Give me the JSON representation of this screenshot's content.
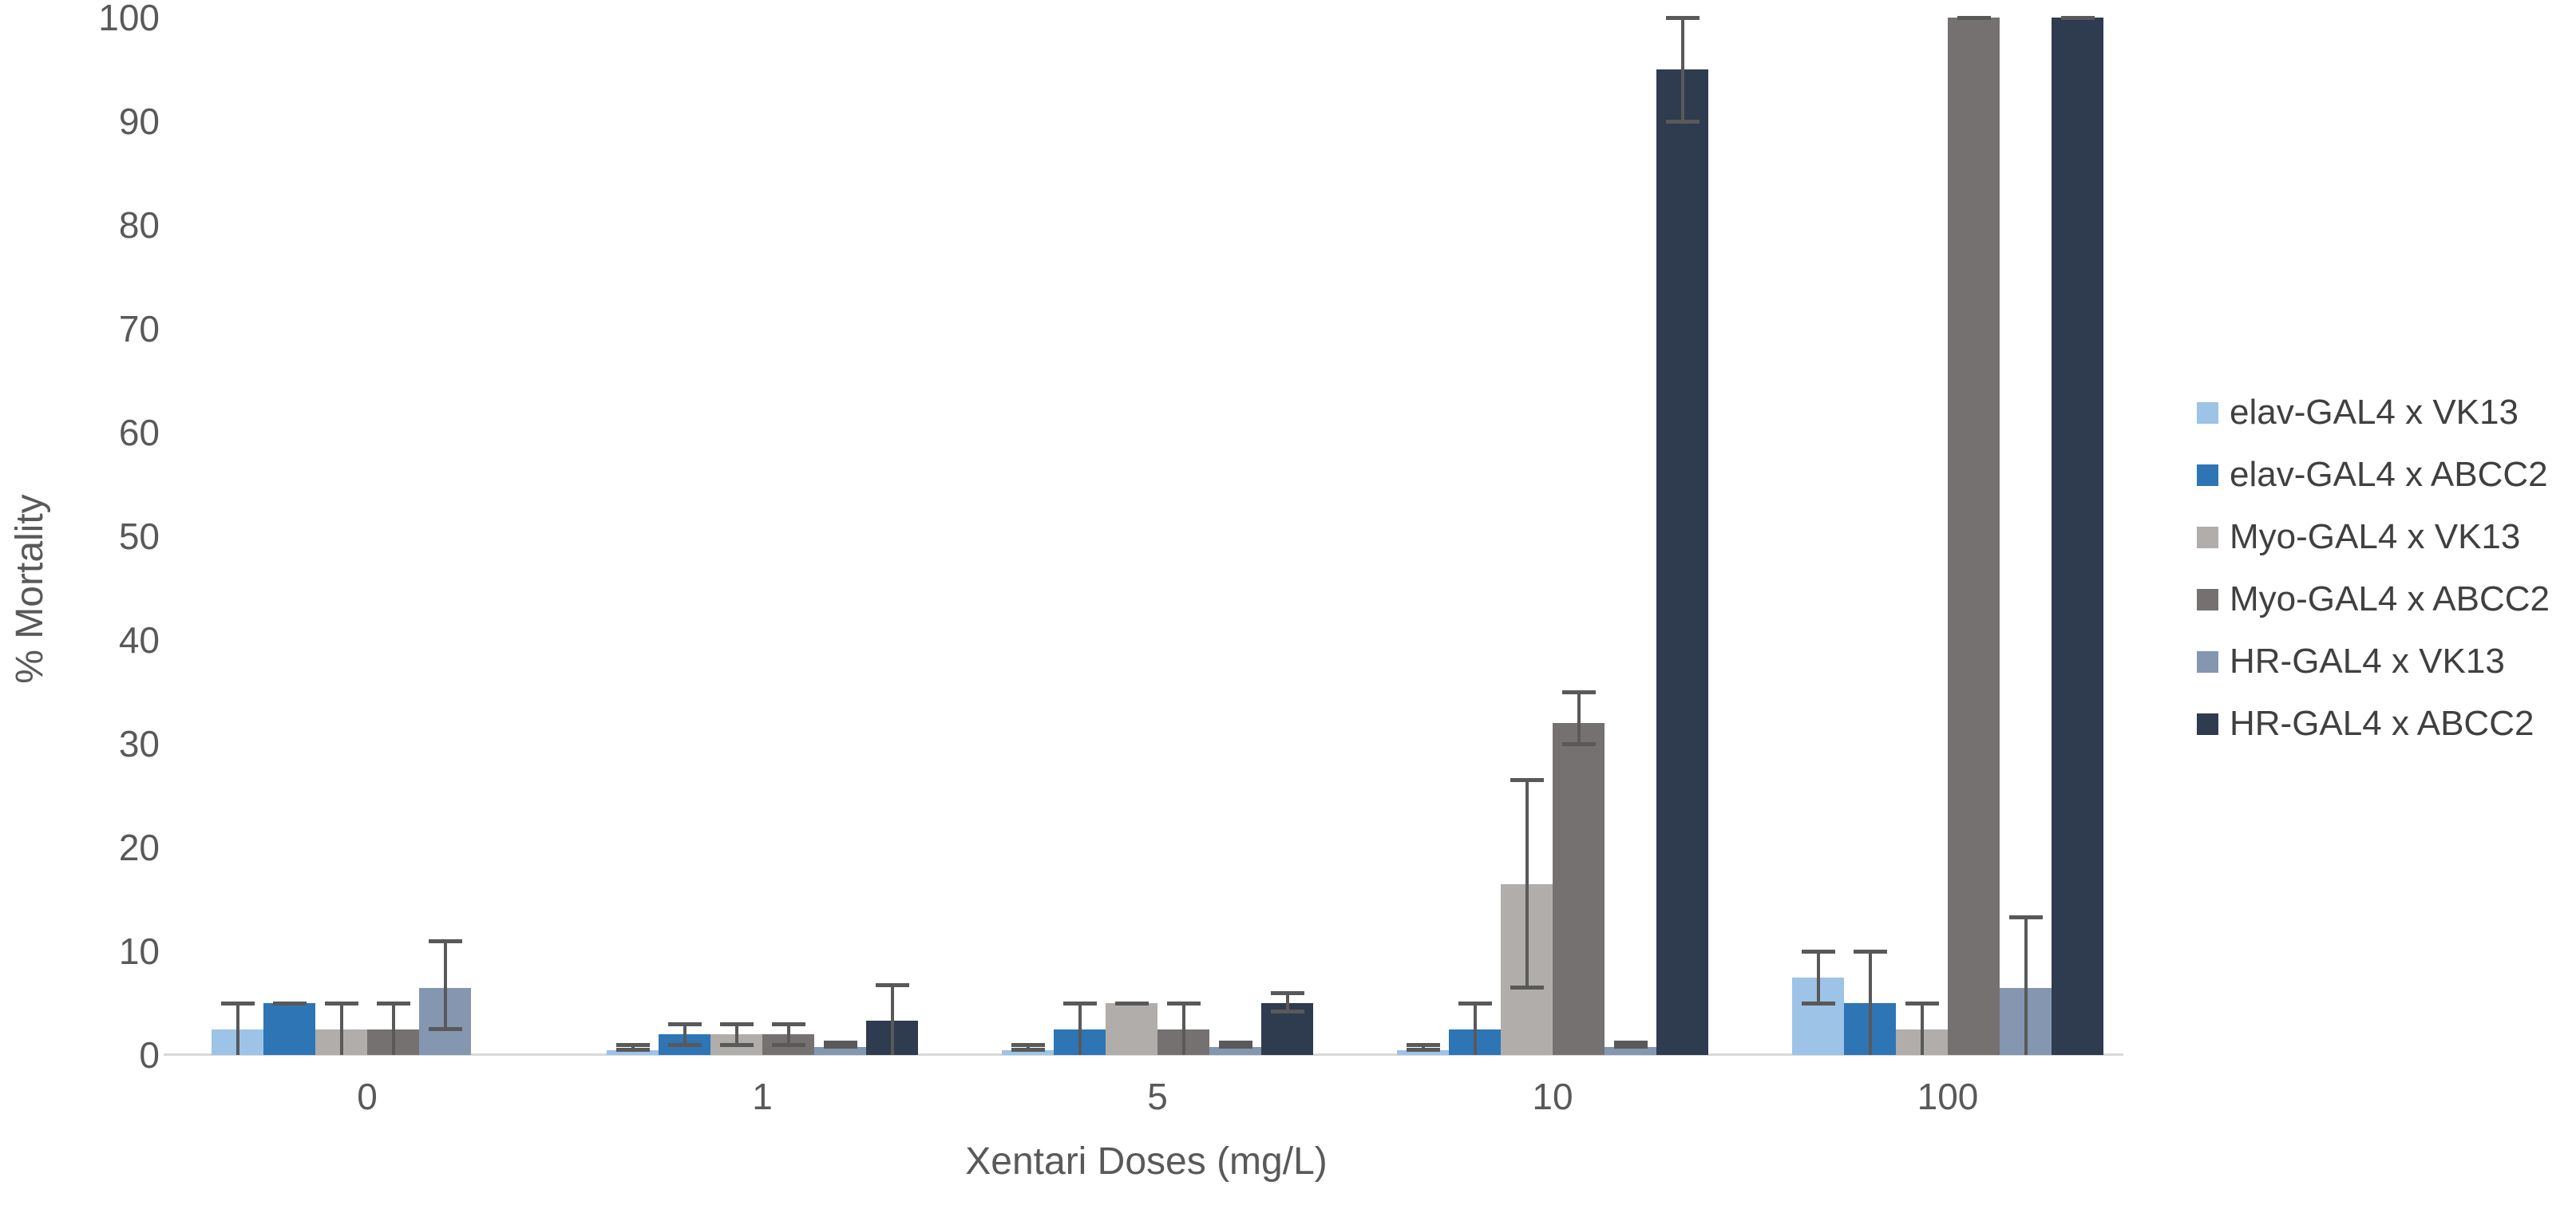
{
  "chart_data": {
    "type": "bar",
    "title": "",
    "xlabel": "Xentari Doses (mg/L)",
    "ylabel": "% Mortality",
    "ylim": [
      0,
      100
    ],
    "yticks": [
      0,
      10,
      20,
      30,
      40,
      50,
      60,
      70,
      80,
      90,
      100
    ],
    "categories": [
      "0",
      "1",
      "5",
      "10",
      "100"
    ],
    "grid": false,
    "legend_position": "right",
    "colors": {
      "axis_line": "#D9D9D9",
      "tick_text": "#595959",
      "legend_text": "#404040",
      "error_bar": "#595959"
    },
    "series": [
      {
        "name": "elav-GAL4 x VK13",
        "color": "#9DC3E6",
        "values": [
          2.5,
          0.5,
          0.5,
          0.5,
          7.5
        ],
        "err_low": [
          0,
          0.5,
          0.5,
          0.5,
          5
        ],
        "err_high": [
          5,
          1,
          1,
          1,
          10
        ]
      },
      {
        "name": "elav-GAL4 x ABCC2",
        "color": "#2E75B6",
        "values": [
          5,
          2,
          2.5,
          2.5,
          5
        ],
        "err_low": [
          5,
          1,
          0,
          0,
          0
        ],
        "err_high": [
          5,
          3,
          5,
          5,
          10
        ]
      },
      {
        "name": "Myo-GAL4 x VK13",
        "color": "#B0ADAB",
        "values": [
          2.5,
          2,
          5,
          16.5,
          2.5
        ],
        "err_low": [
          0,
          1,
          5,
          6.5,
          0
        ],
        "err_high": [
          5,
          3,
          5,
          26.5,
          5
        ]
      },
      {
        "name": "Myo-GAL4 x ABCC2",
        "color": "#767171",
        "values": [
          2.5,
          2,
          2.5,
          32,
          100
        ],
        "err_low": [
          0,
          1,
          0,
          30,
          100
        ],
        "err_high": [
          5,
          3,
          5,
          35,
          100
        ]
      },
      {
        "name": "HR-GAL4 x VK13",
        "color": "#8496B0",
        "values": [
          6.5,
          0.8,
          0.8,
          0.8,
          6.5
        ],
        "err_low": [
          2.5,
          0.8,
          0.8,
          0.8,
          0
        ],
        "err_high": [
          11,
          1.2,
          1.2,
          1.2,
          13.3
        ]
      },
      {
        "name": "HR-GAL4 x ABCC2",
        "color": "#2F3B4E",
        "values": [
          0,
          3.3,
          5,
          95,
          100
        ],
        "err_low": [
          0,
          0,
          4.2,
          90,
          100
        ],
        "err_high": [
          0,
          6.7,
          6,
          100,
          100
        ]
      }
    ]
  }
}
